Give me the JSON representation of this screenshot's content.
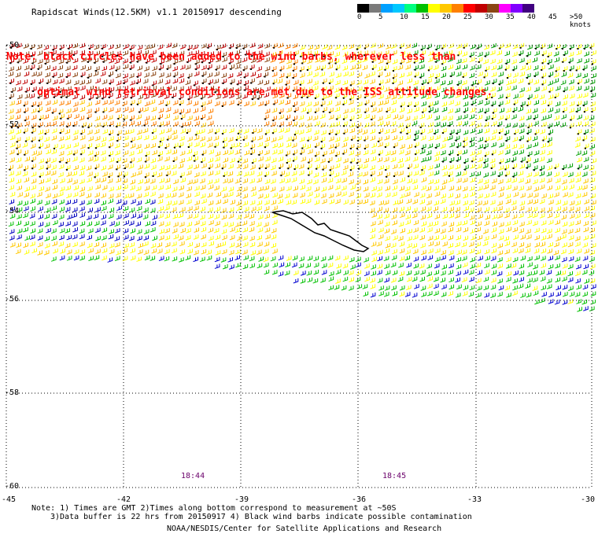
{
  "title": "Rapidscat Winds(12.5KM) v1.1 20150917 descending",
  "note": {
    "line1": "Note: black circles have been added to the wind barbs, wherever less than",
    "line2": "     optimal wind retrieval conditions are met due to the ISS attitude changes."
  },
  "legend": {
    "colors": [
      "#000000",
      "#7a7a7a",
      "#00a0ff",
      "#00c8ff",
      "#00ff80",
      "#00c000",
      "#ffff00",
      "#ffc800",
      "#ff8000",
      "#ff0000",
      "#c00000",
      "#8b4513",
      "#ff00ff",
      "#8000ff",
      "#400080"
    ],
    "labels": [
      "0",
      "5",
      "10",
      "15",
      "20",
      "25",
      "30",
      "35",
      "40",
      "45",
      ">50 knots"
    ],
    "label_steps": [
      0,
      1,
      2,
      3,
      4,
      5,
      6,
      7,
      8,
      9,
      10
    ]
  },
  "axes": {
    "lat_labels": [
      "-50",
      "-52",
      "-54",
      "-56",
      "-58",
      "-60"
    ],
    "lon_labels": [
      "-45",
      "-42",
      "-39",
      "-36",
      "-33",
      "-30"
    ]
  },
  "times": [
    "18:44",
    "18:45"
  ],
  "footer": {
    "line1": "Note: 1) Times are GMT 2)Times along bottom correspond to measurement at ~50S",
    "line2": "3)Data buffer is 22 hrs from 20150917 4) Black wind barbs indicate possible contamination",
    "line3": "NOAA/NESDIS/Center for Satellite Applications and Research"
  }
}
